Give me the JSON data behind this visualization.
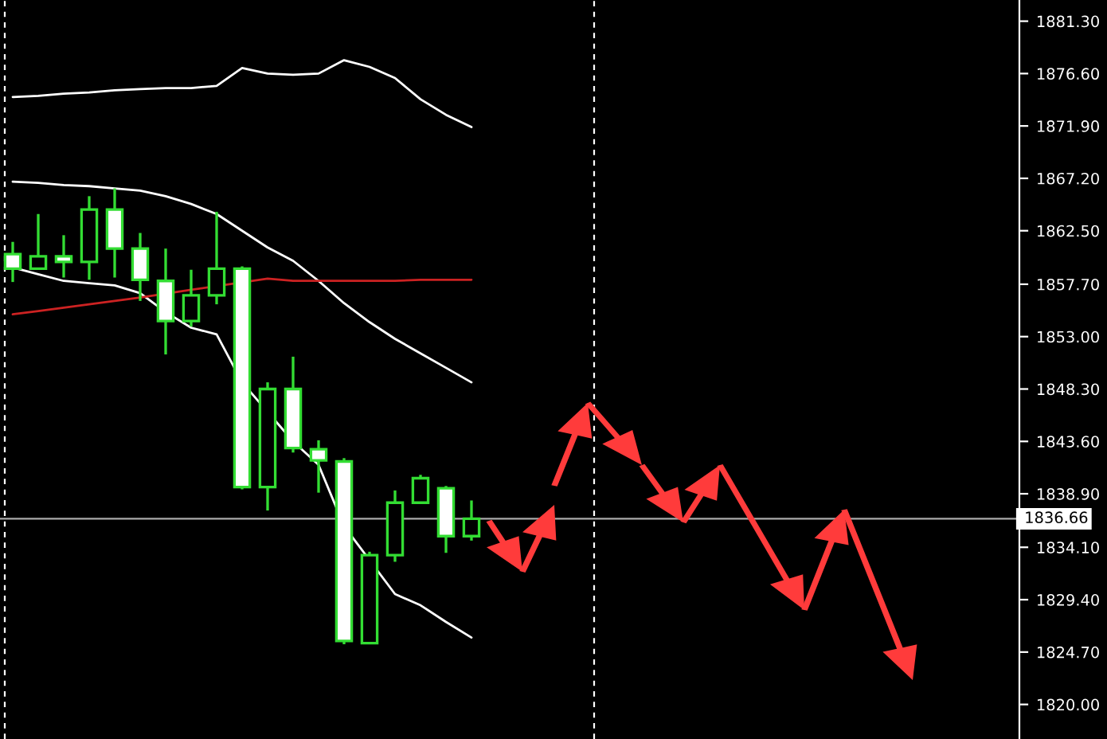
{
  "chart_data": {
    "type": "candlestick",
    "categories": [
      null,
      null,
      null,
      null,
      null,
      null,
      null,
      null,
      null,
      null,
      null,
      null,
      null,
      null,
      null,
      null,
      null,
      null,
      null,
      null,
      null,
      null,
      null,
      null,
      null,
      null,
      null,
      null,
      null,
      null,
      null,
      null,
      null,
      null,
      null,
      null,
      null,
      null,
      null,
      null
    ],
    "ohlc": [
      [
        1860.4,
        1861.5,
        1857.9,
        1859.1
      ],
      [
        1859.1,
        1864.0,
        1859.1,
        1860.2
      ],
      [
        1860.2,
        1862.1,
        1858.3,
        1859.7
      ],
      [
        1859.7,
        1865.6,
        1858.1,
        1864.4
      ],
      [
        1864.4,
        1866.3,
        1858.3,
        1860.9
      ],
      [
        1860.9,
        1862.3,
        1856.2,
        1858.1
      ],
      [
        1858.0,
        1860.9,
        1851.4,
        1854.4
      ],
      [
        1854.4,
        1859.0,
        1853.9,
        1856.7
      ],
      [
        1856.7,
        1864.2,
        1855.9,
        1859.1
      ],
      [
        1859.1,
        1859.3,
        1839.3,
        1839.5
      ],
      [
        1839.5,
        1848.9,
        1837.4,
        1848.3
      ],
      [
        1848.3,
        1851.2,
        1842.6,
        1843.0
      ],
      [
        1842.9,
        1843.7,
        1839.0,
        1841.9
      ],
      [
        1841.8,
        1842.1,
        1825.4,
        1825.7
      ],
      [
        1825.5,
        1833.7,
        1825.5,
        1833.4
      ],
      [
        1833.4,
        1839.2,
        1832.8,
        1838.1
      ],
      [
        1838.1,
        1840.6,
        1838.1,
        1840.3
      ],
      [
        1839.4,
        1839.6,
        1833.6,
        1835.1
      ],
      [
        1835.1,
        1838.3,
        1834.7,
        1836.66
      ],
      null,
      null,
      null,
      null,
      null,
      null,
      null,
      null,
      null,
      null,
      null,
      null,
      null,
      null,
      null,
      null,
      null,
      null,
      null,
      null,
      null
    ],
    "color": "#33dd33",
    "series": [
      {
        "type": "line",
        "color": "#ffffff",
        "values": [
          1874.5,
          1874.6,
          1874.8,
          1874.9,
          1875.1,
          1875.2,
          1875.3,
          1875.3,
          1875.5,
          1877.1,
          1876.6,
          1876.5,
          1876.6,
          1877.8,
          1877.2,
          1876.2,
          1874.3,
          1872.9,
          1871.8,
          null,
          null,
          null,
          null,
          null,
          null,
          null,
          null,
          null,
          null,
          null,
          null,
          null,
          null,
          null,
          null,
          null,
          null,
          null,
          null,
          null
        ]
      },
      {
        "type": "line",
        "color": "#ffffff",
        "values": [
          1866.9,
          1866.8,
          1866.6,
          1866.5,
          1866.3,
          1866.1,
          1865.6,
          1864.9,
          1864.0,
          1862.5,
          1861.0,
          1859.8,
          1858.0,
          1856.0,
          1854.3,
          1852.8,
          1851.5,
          1850.2,
          1848.9,
          null,
          null,
          null,
          null,
          null,
          null,
          null,
          null,
          null,
          null,
          null,
          null,
          null,
          null,
          null,
          null,
          null,
          null,
          null,
          null,
          null
        ]
      },
      {
        "type": "line",
        "color": "#ffffff",
        "values": [
          1859.2,
          1858.6,
          1858.0,
          1857.8,
          1857.6,
          1856.9,
          1855.2,
          1853.8,
          1853.2,
          1848.9,
          null,
          1843.6,
          1841.5,
          1836.0,
          null,
          1829.9,
          1828.9,
          1827.4,
          1826.0,
          null,
          null,
          null,
          null,
          null,
          null,
          null,
          null,
          null,
          null,
          null,
          null,
          null,
          null,
          null,
          null,
          null,
          null,
          null,
          null,
          null
        ]
      },
      {
        "type": "line",
        "color": "#cc2222",
        "values": [
          1855.0,
          1855.3,
          1855.6,
          1855.9,
          1856.2,
          1856.5,
          null,
          1857.2,
          null,
          null,
          1858.2,
          1858.0,
          1858.0,
          1858.0,
          1858.0,
          1858.0,
          1858.1,
          1858.1,
          1858.1,
          null,
          null,
          null,
          null,
          null,
          null,
          null,
          null,
          null,
          null,
          null,
          null,
          null,
          null,
          null,
          null,
          null,
          null,
          null,
          null,
          null
        ]
      }
    ],
    "ref_lines": [
      {
        "axis": "y",
        "value": 1836.66,
        "label": "1836.66",
        "color": "#aaaaaa",
        "line_style": "solid"
      }
    ],
    "ylim": [
      1816.9,
      1883.2
    ],
    "yticks": [
      {
        "value": 1881.3,
        "label": "1881.30"
      },
      {
        "value": 1876.6,
        "label": "1876.60"
      },
      {
        "value": 1871.9,
        "label": "1871.90"
      },
      {
        "value": 1867.2,
        "label": "1867.20"
      },
      {
        "value": 1862.5,
        "label": "1862.50"
      },
      {
        "value": 1857.7,
        "label": "1857.70"
      },
      {
        "value": 1853.0,
        "label": "1853.00"
      },
      {
        "value": 1848.3,
        "label": "1848.30"
      },
      {
        "value": 1843.6,
        "label": "1843.60"
      },
      {
        "value": 1838.9,
        "label": "1838.90"
      },
      {
        "value": 1834.1,
        "label": "1834.10"
      },
      {
        "value": 1829.4,
        "label": "1829.40"
      },
      {
        "value": 1824.7,
        "label": "1824.70"
      },
      {
        "value": 1820.0,
        "label": "1820.00"
      }
    ],
    "tick_labels": "y",
    "grid": false
  }
}
